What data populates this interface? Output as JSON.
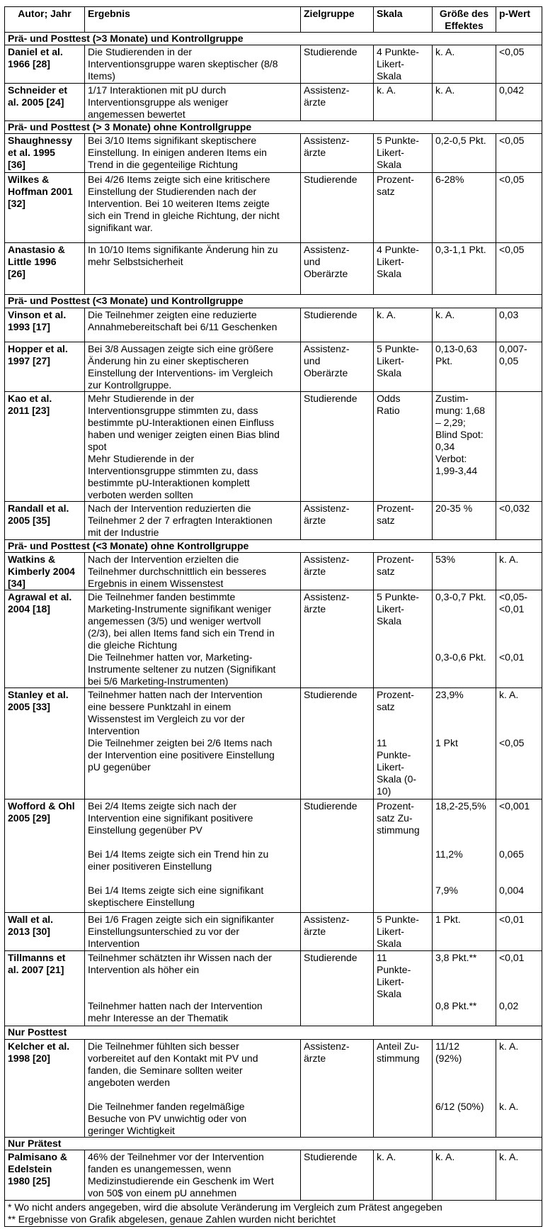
{
  "headers": [
    "Autor; Jahr",
    "Ergebnis",
    "Zielgruppe",
    "Skala",
    "Größe des\nEffektes",
    "p-Wert"
  ],
  "sections": [
    {
      "title": "Prä- und Posttest (>3 Monate) und Kontrollgruppe",
      "rows": [
        {
          "author": "Daniel et al.\n1966 [28]",
          "result": "Die Studierenden in der\nInterventionsgruppe waren skeptischer (8/8\nItems)",
          "group": "Studierende",
          "scale": "4 Punkte-\nLikert-\nSkala",
          "effect": "k. A.",
          "p": "<0,05"
        },
        {
          "author": "Schneider et\nal. 2005 [24]",
          "result": "1/17 Interaktionen mit pU durch\nInterventionsgruppe als weniger\nangemessen bewertet",
          "group": "Assistenz-\närzte",
          "scale": "k. A.",
          "effect": "k. A.",
          "p": "0,042"
        }
      ]
    },
    {
      "title": "Prä- und Posttest (> 3 Monate) ohne Kontrollgruppe",
      "rows": [
        {
          "author": "Shaughnessy\net al. 1995\n[36]",
          "result": "Bei 3/10 Items signifikant skeptischere\nEinstellung. In einigen anderen Items ein\nTrend in die gegenteilige Richtung",
          "group": "Assistenz-\närzte",
          "scale": "5 Punkte-\nLikert-\nSkala",
          "effect": "0,2-0,5 Pkt.",
          "p": "<0,05"
        },
        {
          "author": "Wilkes &\nHoffman 2001\n[32]",
          "result": "Bei 4/26 Items zeigte sich eine kritischere\nEinstellung der Studierenden nach der\nIntervention. Bei 10 weiteren Items zeigte\nsich ein Trend in gleiche Richtung, der nicht\nsignifikant war.",
          "group": "Studierende",
          "scale": "Prozent-\nsatz",
          "effect": "6-28%",
          "p": "<0,05"
        },
        {
          "author": "Anastasio &\nLittle 1996\n[26]",
          "result": "In 10/10 Items signifikante Änderung hin zu\nmehr Selbstsicherheit",
          "group": "Assistenz-\nund\nOberärzte",
          "scale": "4 Punkte-\nLikert-\nSkala",
          "effect": "0,3-1,1 Pkt.",
          "p": "<0,05"
        }
      ]
    },
    {
      "title": "Prä- und Posttest (<3 Monate) und Kontrollgruppe",
      "rows": [
        {
          "author": "Vinson et al.\n1993 [17]",
          "result": "Die Teilnehmer zeigten eine reduzierte\nAnnahmebereitschaft bei 6/11 Geschenken",
          "group": "Studierende",
          "scale": "k. A.",
          "effect": "k. A.",
          "p": "0,03"
        },
        {
          "author": "Hopper et al.\n1997 [27]",
          "result": "Bei 3/8 Aussagen zeigte sich eine größere\nÄnderung hin zu einer skeptischeren\nEinstellung der Interventions- im Vergleich\nzur Kontrollgruppe.",
          "group": "Assistenz-\nund\nOberärzte",
          "scale": "5 Punkte-\nLikert-\nSkala",
          "effect": "0,13-0,63\nPkt.",
          "p": "0,007-\n0,05"
        },
        {
          "author": "Kao et al.\n2011 [23]",
          "result": "Mehr Studierende in der\nInterventionsgruppe stimmten zu, dass\nbestimmte pU-Interaktionen einen Einfluss\nhaben und weniger zeigten einen Bias blind\nspot\nMehr Studierende in der\nInterventionsgruppe stimmten zu, dass\nbestimmte pU-Interaktionen komplett\nverboten werden sollten",
          "group": "Studierende",
          "scale": "Odds\nRatio",
          "effect": "Zustim-\nmung: 1,68\n– 2,29;\nBlind Spot:\n0,34\nVerbot:\n1,99-3,44",
          "p": ""
        },
        {
          "author": " Randall et al.\n2005 [35]",
          "result": "Nach der Intervention reduzierten die\nTeilnehmer 2 der 7 erfragten Interaktionen\nmit der Industrie",
          "group": "Assistenz-\närzte",
          "scale": "Prozent-\nsatz",
          "effect": "20-35 %",
          "p": "<0,032"
        }
      ]
    },
    {
      "title": "Prä- und Posttest (<3 Monate) ohne Kontrollgruppe",
      "rows": [
        {
          "author": "Watkins &\nKimberly 2004\n[34]",
          "result": "Nach der Intervention erzielten die\nTeilnehmer durchschnittlich ein besseres\nErgebnis in einem Wissenstest",
          "group": "Assistenz-\närzte",
          "scale": "Prozent-\nsatz",
          "effect": "53%",
          "p": "k. A."
        },
        {
          "author": "Agrawal et al.\n2004 [18]",
          "result": "Die Teilnehmer fanden bestimmte\nMarketing-Instrumente signifikant weniger\nangemessen (3/5) und weniger wertvoll\n(2/3), bei allen Items fand sich ein Trend in\ndie gleiche Richtung\nDie Teilnehmer hatten vor, Marketing-\nInstrumente seltener zu nutzen (Signifikant\nbei 5/6 Marketing-Instrumenten)",
          "group": "Assistenz-\närzte",
          "scale": "5 Punkte-\nLikert-\nSkala",
          "effect": "0,3-0,7 Pkt.\n\n\n\n\n0,3-0,6 Pkt.",
          "p": "<0,05-\n<0,01\n\n\n\n<0,01"
        },
        {
          "author": "Stanley et al.\n2005 [33]",
          "result": "Teilnehmer hatten nach der Intervention\neine bessere Punktzahl in einem\nWissenstest im Vergleich zu vor der\nIntervention\nDie Teilnehmer zeigten bei 2/6 Items nach\nder Intervention eine positivere Einstellung\npU gegenüber",
          "group": "Studierende",
          "scale": "Prozent-\nsatz\n\n\n11\nPunkte-\nLikert-\nSkala (0-\n10)",
          "effect": "23,9%\n\n\n\n1 Pkt",
          "p": "k. A.\n\n\n\n<0,05"
        },
        {
          "author": "Wofford & Ohl\n2005 [29]",
          "result": "Bei 2/4 Items zeigte sich nach der\nIntervention eine signifikant positivere\nEinstellung gegenüber PV\n\nBei 1/4 Items zeigte sich ein Trend hin zu\neiner positiveren Einstellung\n\nBei 1/4 Items zeigte sich eine signifikant\nskeptischere Einstellung",
          "group": "Studierende",
          "scale": "Prozent-\nsatz Zu-\nstimmung",
          "effect": "18,2-25,5%\n\n\n\n11,2%\n\n\n7,9%",
          "p": "<0,001\n\n\n\n0,065\n\n\n0,004"
        },
        {
          "author": "Wall et al.\n2013 [30]",
          "result": "Bei 1/6 Fragen zeigte sich ein signifikanter\nEinstellungsunterschied zu vor der\nIntervention",
          "group": "Assistenz-\närzte",
          "scale": "5 Punkte-\nLikert-\nSkala",
          "effect": "1 Pkt.",
          "p": "<0,01"
        },
        {
          "author": "Tillmanns et\nal. 2007 [21]",
          "result": "Teilnehmer schätzten ihr Wissen nach der\nIntervention als höher ein\n\n\nTeilnehmer hatten nach der Intervention\nmehr Interesse an der Thematik",
          "group": "Studierende",
          "scale": "11\nPunkte-\nLikert-\nSkala",
          "effect": "3,8 Pkt.**\n\n\n\n0,8 Pkt.**",
          "p": "<0,01\n\n\n\n0,02"
        }
      ]
    },
    {
      "title": "Nur Posttest",
      "rows": [
        {
          "author": " Kelcher et al.\n1998 [20]",
          "result": "Die Teilnehmer fühlten sich besser\nvorbereitet auf den Kontakt mit PV und\nfanden, die Seminare sollten weiter\nangeboten werden\n\nDie Teilnehmer fanden regelmäßige\nBesuche von PV unwichtig oder von\ngeringer Wichtigkeit",
          "group": "Assistenz-\närzte",
          "scale": "Anteil Zu-\nstimmung",
          "effect": "11/12\n(92%)\n\n\n\n6/12 (50%)",
          "p": "k. A.\n\n\n\n\nk. A."
        }
      ]
    },
    {
      "title": "Nur Prätest",
      "rows": [
        {
          "author": "Palmisano &\nEdelstein\n1980 [25]",
          "result": "46% der Teilnehmer vor der Intervention\nfanden es unangemessen, wenn\nMedizinstudierende ein Geschenk im Wert\nvon 50$ von einem pU annehmen",
          "group": "Studierende",
          "scale": "k. A.",
          "effect": "k. A.",
          "p": "k. A."
        }
      ]
    }
  ],
  "footnotes": [
    "* Wo nicht anders angegeben, wird die absolute Veränderung im Vergleich zum Prätest angegeben",
    "** Ergebnisse von Grafik abgelesen, genaue Zahlen wurden nicht berichtet"
  ]
}
